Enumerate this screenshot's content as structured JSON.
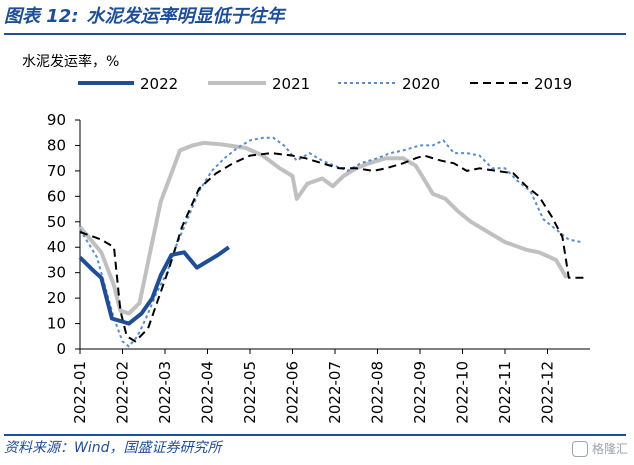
{
  "header": {
    "figure_label": "图表 12:",
    "title": "水泥发运率明显低于往年"
  },
  "footer": {
    "source": "资料来源：Wind，国盛证券研究所",
    "watermark": "格隆汇"
  },
  "colors": {
    "accent": "#1f4e96",
    "s2022": "#1f4e96",
    "s2021": "#c0c0c0",
    "s2020": "#5b8cc8",
    "s2019": "#000000"
  },
  "chart_data": {
    "type": "line",
    "ylabel": "水泥发运率，%",
    "ylim": [
      0,
      90
    ],
    "yticks": [
      0,
      10,
      20,
      30,
      40,
      50,
      60,
      70,
      80,
      90
    ],
    "xlim": [
      0,
      12
    ],
    "xticks": [
      "2022-01",
      "2022-02",
      "2022-03",
      "2022-04",
      "2022-05",
      "2022-06",
      "2022-07",
      "2022-08",
      "2022-09",
      "2022-10",
      "2022-11",
      "2022-12"
    ],
    "legend_position": "top",
    "series": [
      {
        "name": "2022",
        "style": "solid-thick",
        "x": [
          0.0,
          0.3,
          0.5,
          0.75,
          0.95,
          1.15,
          1.45,
          1.7,
          1.9,
          2.15,
          2.45,
          2.75,
          2.95,
          3.25,
          3.5
        ],
        "y": [
          36,
          31,
          28,
          12,
          11,
          10,
          14,
          20,
          29,
          37,
          38,
          32,
          34,
          37,
          40
        ]
      },
      {
        "name": "2021",
        "style": "solid-gray",
        "x": [
          0.0,
          0.5,
          0.8,
          0.95,
          1.15,
          1.4,
          1.65,
          1.9,
          2.15,
          2.35,
          2.65,
          2.9,
          3.3,
          3.9,
          4.3,
          4.7,
          5.0,
          5.1,
          5.35,
          5.7,
          5.95,
          6.2,
          6.5,
          6.8,
          7.2,
          7.6,
          7.9,
          8.05,
          8.3,
          8.6,
          8.9,
          9.2,
          9.6,
          10.0,
          10.5,
          10.8,
          11.2,
          11.45
        ],
        "y": [
          48,
          38,
          25,
          15,
          14,
          18,
          38,
          58,
          69,
          78,
          80,
          81,
          80.5,
          79,
          76,
          71,
          68,
          59,
          65,
          67,
          64,
          68,
          71,
          73,
          75,
          75,
          72,
          68,
          61,
          59,
          54,
          50,
          46,
          42,
          39,
          38,
          35,
          28
        ]
      },
      {
        "name": "2020",
        "style": "dotted",
        "x": [
          0.0,
          0.4,
          0.8,
          1.0,
          1.15,
          1.35,
          1.55,
          1.8,
          2.05,
          2.25,
          2.5,
          2.8,
          3.1,
          3.4,
          3.7,
          4.0,
          4.3,
          4.55,
          4.8,
          5.1,
          5.4,
          5.7,
          6.0,
          6.3,
          6.6,
          7.0,
          7.3,
          7.6,
          8.0,
          8.3,
          8.55,
          8.8,
          9.1,
          9.4,
          9.7,
          10.0,
          10.3,
          10.6,
          10.9,
          11.2,
          11.5,
          11.8
        ],
        "y": [
          47,
          36,
          12,
          3,
          1,
          5,
          12,
          22,
          30,
          40,
          50,
          62,
          70,
          75,
          79,
          82,
          83,
          83,
          80,
          74,
          77,
          74,
          72,
          70,
          73,
          75,
          77,
          78,
          80,
          80,
          82,
          77,
          77,
          76,
          71,
          71,
          66,
          62,
          51,
          47,
          43,
          42
        ]
      },
      {
        "name": "2019",
        "style": "dashed",
        "x": [
          0.0,
          0.5,
          0.8,
          0.95,
          1.1,
          1.3,
          1.6,
          1.85,
          2.1,
          2.4,
          2.8,
          3.2,
          3.6,
          4.0,
          4.5,
          5.0,
          5.3,
          5.7,
          6.1,
          6.5,
          6.9,
          7.2,
          7.6,
          7.9,
          8.1,
          8.5,
          8.8,
          9.1,
          9.4,
          9.8,
          10.2,
          10.5,
          10.8,
          11.1,
          11.35,
          11.5,
          11.9
        ],
        "y": [
          46,
          43,
          40,
          15,
          5,
          3,
          8,
          20,
          32,
          48,
          63,
          69,
          73,
          76,
          77,
          76,
          75,
          73,
          71,
          71,
          70,
          71,
          73,
          75,
          76,
          74,
          73,
          70,
          71,
          70,
          69,
          64,
          60,
          52,
          44,
          28,
          28
        ]
      }
    ]
  }
}
